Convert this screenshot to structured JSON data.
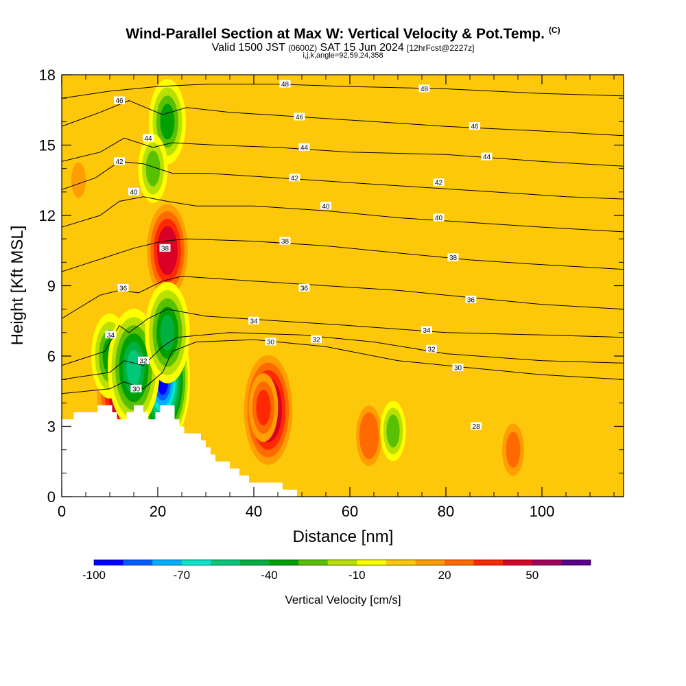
{
  "header": {
    "title": "Wind-Parallel Section at Max W: Vertical Velocity & Pot.Temp.",
    "copyright": "(C)",
    "valid_prefix": "Valid 1500 JST",
    "valid_utc": "(0600Z)",
    "valid_date": "SAT 15 Jun 2024",
    "forecast": "[12hrFcst@2227z]",
    "indices": "i,j,k,angle=92,59,24,358"
  },
  "chart_data": {
    "type": "heatmap",
    "title": "Wind-Parallel Section at Max W: Vertical Velocity & Pot.Temp.",
    "xlabel": "Distance [nm]",
    "ylabel": "Height [Kft MSL]",
    "xlim": [
      0,
      117
    ],
    "ylim": [
      0,
      18
    ],
    "x_ticks": [
      0,
      20,
      40,
      60,
      80,
      100
    ],
    "x_minor": [
      5,
      10,
      15,
      25,
      30,
      35,
      45,
      50,
      55,
      65,
      70,
      75,
      85,
      90,
      95,
      105,
      110,
      115
    ],
    "y_ticks": [
      0,
      3,
      6,
      9,
      12,
      15,
      18
    ],
    "y_minor": [
      1,
      2,
      4,
      5,
      7,
      8,
      10,
      11,
      13,
      14,
      16,
      17
    ],
    "background_color": "#fdc80a",
    "terrain": [
      [
        0,
        3.3
      ],
      [
        2.5,
        3.3
      ],
      [
        2.5,
        3.6
      ],
      [
        7.5,
        3.6
      ],
      [
        7.5,
        3.9
      ],
      [
        10.5,
        3.9
      ],
      [
        10.5,
        3.6
      ],
      [
        11.5,
        3.6
      ],
      [
        11.5,
        3.3
      ],
      [
        13.5,
        3.3
      ],
      [
        13.5,
        3.6
      ],
      [
        15,
        3.6
      ],
      [
        15,
        3.9
      ],
      [
        17,
        3.9
      ],
      [
        17,
        3.6
      ],
      [
        18,
        3.6
      ],
      [
        18,
        3.3
      ],
      [
        19.5,
        3.3
      ],
      [
        19.5,
        3.6
      ],
      [
        20.5,
        3.6
      ],
      [
        20.5,
        3.9
      ],
      [
        23.5,
        3.9
      ],
      [
        23.5,
        3.3
      ],
      [
        24.5,
        3.3
      ],
      [
        24.5,
        3.0
      ],
      [
        25.5,
        3.0
      ],
      [
        25.5,
        2.7
      ],
      [
        29,
        2.7
      ],
      [
        29,
        2.4
      ],
      [
        30,
        2.4
      ],
      [
        30,
        2.1
      ],
      [
        31,
        2.1
      ],
      [
        31,
        1.8
      ],
      [
        32,
        1.8
      ],
      [
        32,
        1.5
      ],
      [
        35,
        1.5
      ],
      [
        35,
        1.2
      ],
      [
        37,
        1.2
      ],
      [
        37,
        0.9
      ],
      [
        39,
        0.9
      ],
      [
        39,
        0.6
      ],
      [
        46,
        0.6
      ],
      [
        46,
        0.3
      ],
      [
        49,
        0.3
      ],
      [
        49,
        0.0
      ]
    ],
    "updrafts": [
      {
        "x": 43,
        "y": 3.7,
        "value": 55
      },
      {
        "x": 42,
        "y": 3.8,
        "value": 30
      },
      {
        "x": 22,
        "y": 10.5,
        "value": 45
      },
      {
        "x": 12,
        "y": 4.5,
        "value": 50
      },
      {
        "x": 17,
        "y": 4.5,
        "value": 45
      },
      {
        "x": 64,
        "y": 2.6,
        "value": 25
      },
      {
        "x": 94,
        "y": 2.0,
        "value": 20
      },
      {
        "x": 3.5,
        "y": 13.5,
        "value": 10
      }
    ],
    "downdrafts": [
      {
        "x": 21,
        "y": 5.0,
        "value": -100
      },
      {
        "x": 10,
        "y": 6.0,
        "value": -40
      },
      {
        "x": 15,
        "y": 5.5,
        "value": -60
      },
      {
        "x": 22,
        "y": 7.0,
        "value": -50
      },
      {
        "x": 69,
        "y": 2.8,
        "value": -25
      },
      {
        "x": 22,
        "y": 16.0,
        "value": -40
      },
      {
        "x": 19,
        "y": 14.0,
        "value": -30
      }
    ],
    "isentropes": [
      {
        "theta": 30,
        "points": [
          [
            0,
            4.4
          ],
          [
            10,
            4.6
          ],
          [
            13,
            4.9
          ],
          [
            17,
            4.6
          ],
          [
            21,
            5.3
          ],
          [
            23,
            6.2
          ],
          [
            28,
            6.6
          ],
          [
            40,
            6.7
          ],
          [
            55,
            6.4
          ],
          [
            70,
            5.8
          ],
          [
            85,
            5.5
          ],
          [
            100,
            5.2
          ],
          [
            117,
            5.0
          ]
        ]
      },
      {
        "theta": 32,
        "points": [
          [
            0,
            5.0
          ],
          [
            10,
            5.3
          ],
          [
            13,
            5.8
          ],
          [
            17,
            5.6
          ],
          [
            21,
            6.4
          ],
          [
            24,
            6.8
          ],
          [
            35,
            7.0
          ],
          [
            50,
            6.9
          ],
          [
            65,
            6.6
          ],
          [
            80,
            6.1
          ],
          [
            100,
            5.8
          ],
          [
            117,
            5.7
          ]
        ]
      },
      {
        "theta": 34,
        "points": [
          [
            0,
            5.6
          ],
          [
            9,
            6.2
          ],
          [
            12,
            7.3
          ],
          [
            14,
            7.0
          ],
          [
            18,
            7.6
          ],
          [
            22,
            8.0
          ],
          [
            30,
            7.7
          ],
          [
            45,
            7.5
          ],
          [
            60,
            7.3
          ],
          [
            80,
            7.0
          ],
          [
            100,
            6.9
          ],
          [
            117,
            6.8
          ]
        ]
      },
      {
        "theta": 36,
        "points": [
          [
            0,
            7.6
          ],
          [
            8,
            8.6
          ],
          [
            12,
            8.8
          ],
          [
            16,
            8.7
          ],
          [
            21,
            9.2
          ],
          [
            25,
            9.4
          ],
          [
            40,
            9.2
          ],
          [
            55,
            9.0
          ],
          [
            70,
            8.8
          ],
          [
            85,
            8.5
          ],
          [
            100,
            8.2
          ],
          [
            117,
            8.0
          ]
        ]
      },
      {
        "theta": 38,
        "points": [
          [
            0,
            9.6
          ],
          [
            9,
            10.2
          ],
          [
            15,
            10.6
          ],
          [
            21,
            10.9
          ],
          [
            26,
            11.0
          ],
          [
            40,
            10.9
          ],
          [
            55,
            10.7
          ],
          [
            70,
            10.4
          ],
          [
            85,
            10.1
          ],
          [
            100,
            9.9
          ],
          [
            117,
            9.7
          ]
        ]
      },
      {
        "theta": 40,
        "points": [
          [
            0,
            11.5
          ],
          [
            8,
            12.0
          ],
          [
            12,
            12.6
          ],
          [
            17,
            12.8
          ],
          [
            22,
            12.6
          ],
          [
            28,
            12.4
          ],
          [
            40,
            12.4
          ],
          [
            55,
            12.2
          ],
          [
            70,
            11.9
          ],
          [
            85,
            11.7
          ],
          [
            100,
            11.5
          ],
          [
            117,
            11.3
          ]
        ]
      },
      {
        "theta": 42,
        "points": [
          [
            0,
            13.1
          ],
          [
            7,
            13.6
          ],
          [
            12,
            14.3
          ],
          [
            17,
            14.2
          ],
          [
            23,
            13.8
          ],
          [
            30,
            13.8
          ],
          [
            45,
            13.6
          ],
          [
            60,
            13.4
          ],
          [
            75,
            13.2
          ],
          [
            90,
            13.0
          ],
          [
            105,
            12.8
          ],
          [
            117,
            12.7
          ]
        ]
      },
      {
        "theta": 44,
        "points": [
          [
            0,
            14.3
          ],
          [
            8,
            14.7
          ],
          [
            13,
            15.3
          ],
          [
            19,
            14.9
          ],
          [
            23,
            15.1
          ],
          [
            32,
            15.0
          ],
          [
            45,
            14.9
          ],
          [
            60,
            14.7
          ],
          [
            80,
            14.6
          ],
          [
            100,
            14.3
          ],
          [
            117,
            14.1
          ]
        ]
      },
      {
        "theta": 46,
        "points": [
          [
            0,
            15.8
          ],
          [
            8,
            16.4
          ],
          [
            14,
            16.9
          ],
          [
            21,
            16.3
          ],
          [
            26,
            16.6
          ],
          [
            35,
            16.4
          ],
          [
            50,
            16.2
          ],
          [
            65,
            16.0
          ],
          [
            80,
            15.8
          ],
          [
            100,
            15.6
          ],
          [
            117,
            15.4
          ]
        ]
      },
      {
        "theta": 48,
        "points": [
          [
            0,
            17.0
          ],
          [
            10,
            17.3
          ],
          [
            20,
            17.5
          ],
          [
            30,
            17.6
          ],
          [
            45,
            17.6
          ],
          [
            60,
            17.5
          ],
          [
            80,
            17.4
          ],
          [
            100,
            17.2
          ],
          [
            117,
            17.1
          ]
        ]
      }
    ],
    "isentrope_labels": [
      {
        "text": "48",
        "x": 46.5,
        "y": 17.6
      },
      {
        "text": "48",
        "x": 75.5,
        "y": 17.4
      },
      {
        "text": "46",
        "x": 12,
        "y": 16.9
      },
      {
        "text": "46",
        "x": 49.5,
        "y": 16.2
      },
      {
        "text": "46",
        "x": 86,
        "y": 15.8
      },
      {
        "text": "44",
        "x": 18,
        "y": 15.3
      },
      {
        "text": "44",
        "x": 50.5,
        "y": 14.9
      },
      {
        "text": "44",
        "x": 88.5,
        "y": 14.5
      },
      {
        "text": "42",
        "x": 12,
        "y": 14.3
      },
      {
        "text": "42",
        "x": 48.5,
        "y": 13.6
      },
      {
        "text": "42",
        "x": 78.5,
        "y": 13.4
      },
      {
        "text": "40",
        "x": 15,
        "y": 13.0
      },
      {
        "text": "40",
        "x": 55,
        "y": 12.4
      },
      {
        "text": "40",
        "x": 78.5,
        "y": 11.9
      },
      {
        "text": "38",
        "x": 21.5,
        "y": 10.6
      },
      {
        "text": "38",
        "x": 46.5,
        "y": 10.9
      },
      {
        "text": "38",
        "x": 81.5,
        "y": 10.2
      },
      {
        "text": "36",
        "x": 12.8,
        "y": 8.9
      },
      {
        "text": "36",
        "x": 50.5,
        "y": 8.9
      },
      {
        "text": "36",
        "x": 85.2,
        "y": 8.4
      },
      {
        "text": "34",
        "x": 40,
        "y": 7.5
      },
      {
        "text": "34",
        "x": 10.2,
        "y": 6.9
      },
      {
        "text": "34",
        "x": 76,
        "y": 7.1
      },
      {
        "text": "32",
        "x": 17,
        "y": 5.8
      },
      {
        "text": "32",
        "x": 53,
        "y": 6.7
      },
      {
        "text": "32",
        "x": 77,
        "y": 6.3
      },
      {
        "text": "30",
        "x": 43.5,
        "y": 6.6
      },
      {
        "text": "30",
        "x": 15.5,
        "y": 4.6
      },
      {
        "text": "30",
        "x": 82.5,
        "y": 5.5
      },
      {
        "text": "28",
        "x": 86.3,
        "y": 3.0
      }
    ],
    "colorbar": {
      "label": "Vertical Velocity [cm/s]",
      "tick_labels": [
        "-100",
        "-70",
        "-40",
        "-10",
        "20",
        "50"
      ],
      "levels": [
        -100,
        -90,
        -80,
        -70,
        -60,
        -50,
        -40,
        -30,
        -20,
        -10,
        0,
        10,
        20,
        30,
        40,
        50,
        60
      ],
      "colors": [
        "#0000ff",
        "#0060ff",
        "#00b0ff",
        "#00e8c8",
        "#00c878",
        "#00b040",
        "#00a000",
        "#58c000",
        "#b8e000",
        "#ffff00",
        "#ffc800",
        "#ff9e00",
        "#ff6a00",
        "#ff2800",
        "#d80026",
        "#a0005a",
        "#5a008c"
      ]
    }
  }
}
